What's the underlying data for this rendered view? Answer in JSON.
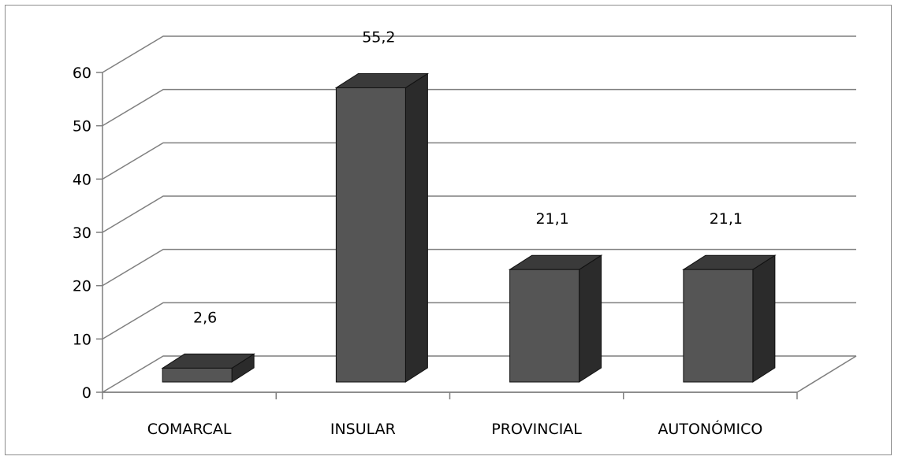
{
  "chart_data": {
    "type": "bar",
    "categories": [
      "COMARCAL",
      "INSULAR",
      "PROVINCIAL",
      "AUTONÓMICO"
    ],
    "values": [
      2.6,
      55.2,
      21.1,
      21.1
    ],
    "value_labels": [
      "2,6",
      "55,2",
      "21,1",
      "21,1"
    ],
    "yticks": [
      "0",
      "10",
      "20",
      "30",
      "40",
      "50",
      "60"
    ],
    "ylim": [
      0,
      60
    ],
    "title": "",
    "xlabel": "",
    "ylabel": "",
    "grid": true,
    "legend": "none",
    "style": "3d-column",
    "bar_color": "#555555",
    "bar_side_color": "#2b2b2b",
    "bar_top_color": "#3a3a3a",
    "grid_color": "#7f7f7f"
  }
}
